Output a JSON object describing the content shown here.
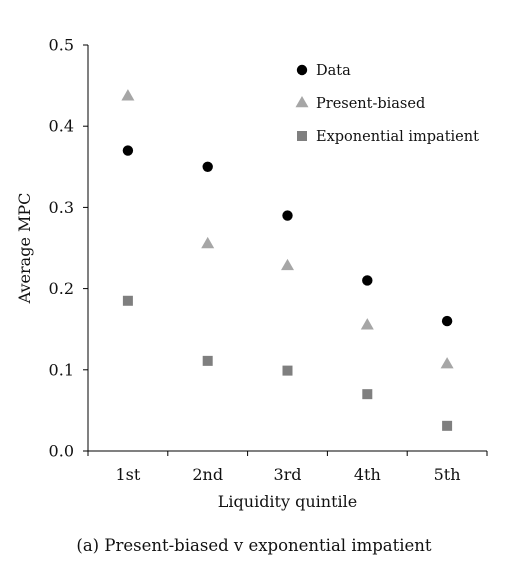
{
  "caption": "(a) Present-biased v exponential impatient",
  "chart_data": {
    "type": "scatter",
    "xlabel": "Liquidity quintile",
    "ylabel": "Average MPC",
    "categories": [
      "1st",
      "2nd",
      "3rd",
      "4th",
      "5th"
    ],
    "ylim": [
      0,
      0.5
    ],
    "yticks": [
      "0.0",
      "0.1",
      "0.2",
      "0.3",
      "0.4",
      "0.5"
    ],
    "grid": false,
    "legend_position": "top-right",
    "series": [
      {
        "name": "Data",
        "marker": "circle",
        "color": "#000000",
        "values": [
          0.37,
          0.35,
          0.29,
          0.21,
          0.16
        ]
      },
      {
        "name": "Present-biased",
        "marker": "triangle",
        "color": "#a6a6a6",
        "values": [
          0.437,
          0.255,
          0.228,
          0.155,
          0.107
        ]
      },
      {
        "name": "Exponential impatient",
        "marker": "square",
        "color": "#7f7f7f",
        "values": [
          0.185,
          0.111,
          0.099,
          0.07,
          0.031
        ]
      }
    ]
  }
}
